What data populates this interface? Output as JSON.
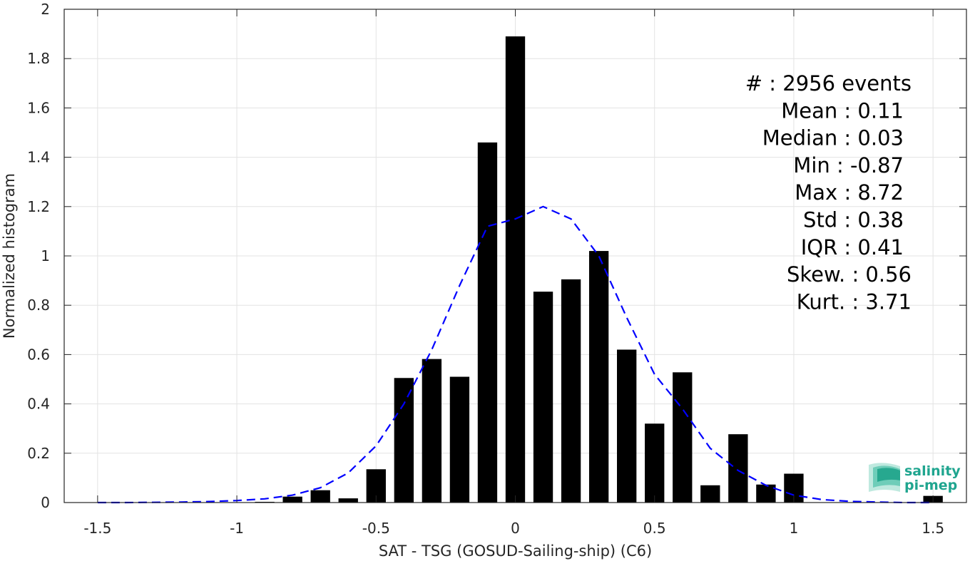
{
  "chart_data": {
    "type": "bar",
    "xlabel": "SAT - TSG (GOSUD-Sailing-ship) (C6)",
    "ylabel": "Normalized histogram",
    "xlim": [
      -1.62,
      1.62
    ],
    "ylim": [
      0,
      2
    ],
    "grid": true,
    "bar_width": 0.07,
    "x_ticks": [
      -1.5,
      -1,
      -0.5,
      0,
      0.5,
      1,
      1.5
    ],
    "x_tick_labels": [
      "-1.5",
      "-1",
      "-0.5",
      "0",
      "0.5",
      "1",
      "1.5"
    ],
    "y_ticks": [
      0,
      0.2,
      0.4,
      0.6,
      0.8,
      1,
      1.2,
      1.4,
      1.6,
      1.8,
      2
    ],
    "y_tick_labels": [
      "0",
      "0.2",
      "0.4",
      "0.6",
      "0.8",
      "1",
      "1.2",
      "1.4",
      "1.6",
      "1.8",
      "2"
    ],
    "bars": {
      "x": [
        -0.9,
        -0.8,
        -0.7,
        -0.6,
        -0.5,
        -0.4,
        -0.3,
        -0.2,
        -0.1,
        0.0,
        0.1,
        0.2,
        0.3,
        0.4,
        0.5,
        0.6,
        0.7,
        0.8,
        0.9,
        1.0,
        1.5
      ],
      "values": [
        0.003,
        0.024,
        0.05,
        0.017,
        0.135,
        0.505,
        0.582,
        0.51,
        1.46,
        1.89,
        0.855,
        0.905,
        1.02,
        0.62,
        0.32,
        0.528,
        0.07,
        0.277,
        0.073,
        0.117,
        0.027
      ],
      "color": "#000000"
    },
    "fit_curve": {
      "style": "dashed",
      "color": "#0000ff",
      "x": [
        -1.5,
        -1.4,
        -1.3,
        -1.2,
        -1.1,
        -1.0,
        -0.9,
        -0.8,
        -0.7,
        -0.6,
        -0.5,
        -0.4,
        -0.3,
        -0.2,
        -0.1,
        0.0,
        0.1,
        0.2,
        0.3,
        0.4,
        0.5,
        0.6,
        0.7,
        0.8,
        0.9,
        1.0,
        1.1,
        1.2,
        1.3,
        1.4,
        1.5
      ],
      "y": [
        0.0,
        0.0,
        0.001,
        0.002,
        0.004,
        0.008,
        0.015,
        0.03,
        0.06,
        0.12,
        0.23,
        0.4,
        0.62,
        0.88,
        1.12,
        1.15,
        1.2,
        1.15,
        1.0,
        0.75,
        0.52,
        0.38,
        0.22,
        0.13,
        0.07,
        0.03,
        0.012,
        0.005,
        0.002,
        0.0,
        0.0
      ]
    },
    "annotations": [
      "#  : 2956 events",
      "Mean : 0.11",
      "Median : 0.03",
      "Min : -0.87",
      "Max : 8.72",
      "Std : 0.38",
      "IQR : 0.41",
      "Skew. : 0.56",
      "Kurt. : 3.71"
    ]
  },
  "logo": {
    "line1": "salinity",
    "line2": "pi-mep",
    "color": "#1fa58f"
  }
}
